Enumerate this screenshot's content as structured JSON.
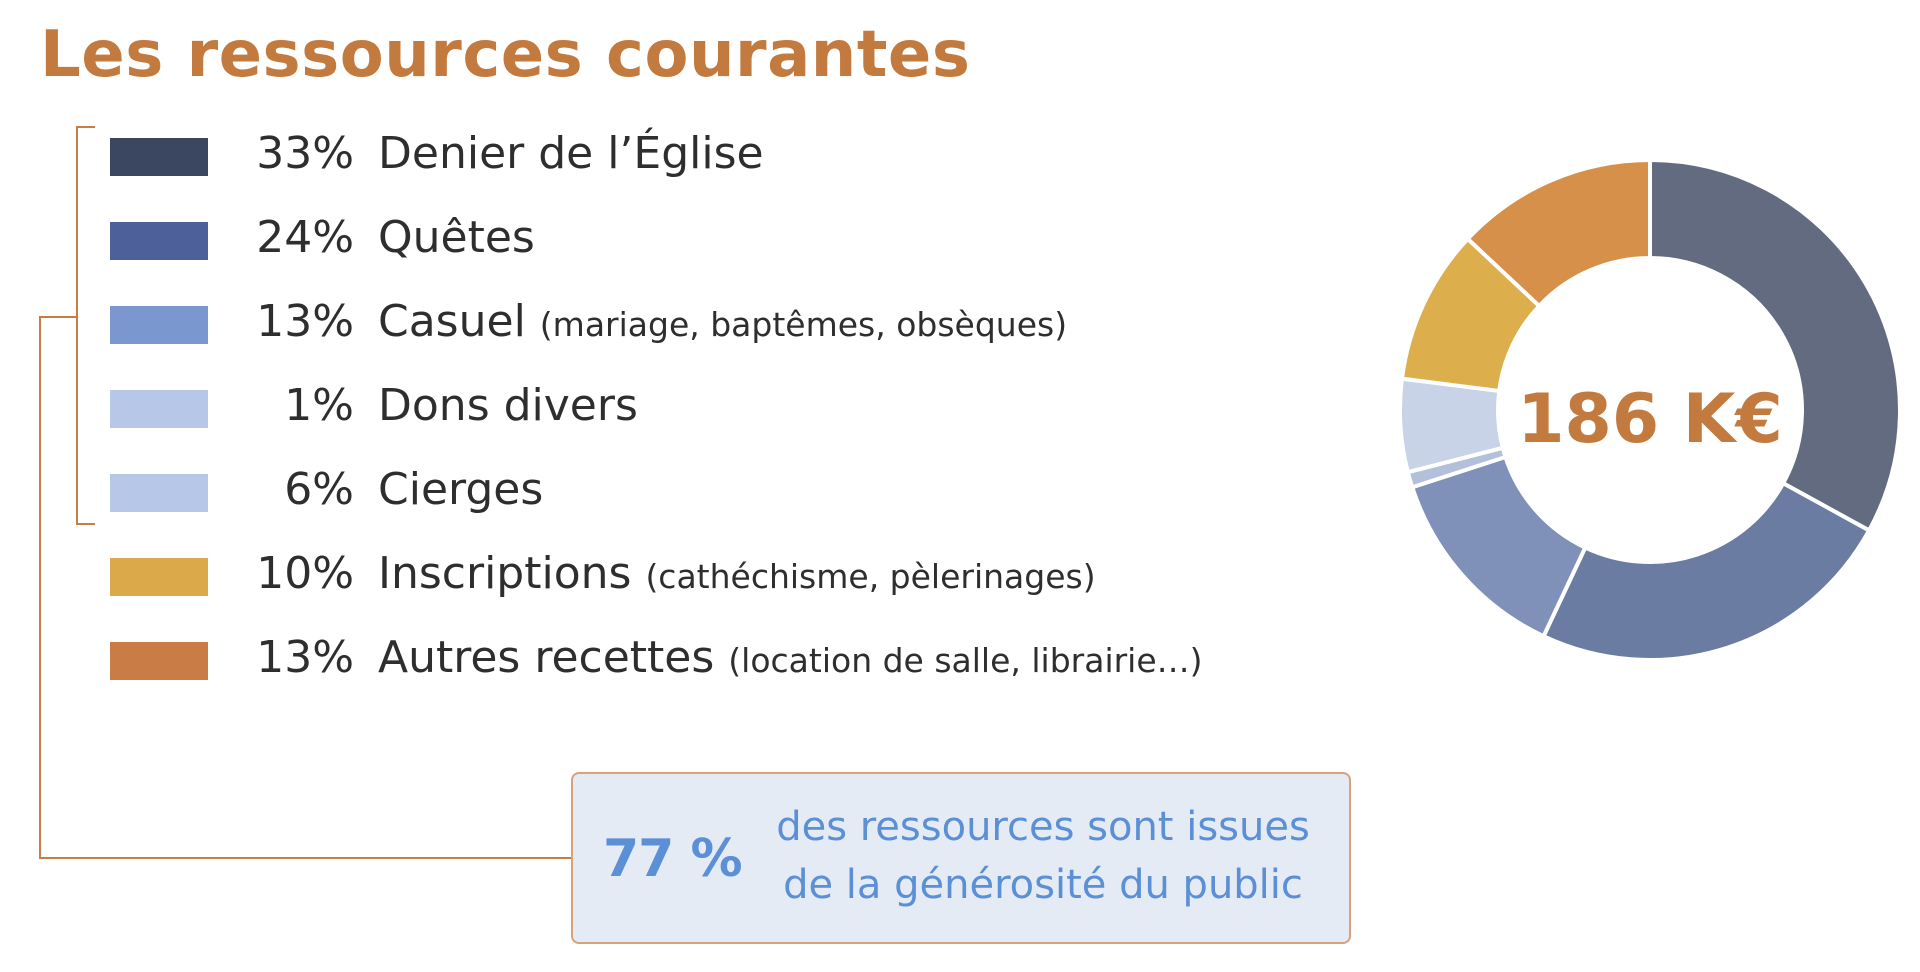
{
  "title": "Les ressources courantes",
  "chart_data": {
    "type": "pie",
    "total_label": "186 K€",
    "slices": [
      {
        "pct_label": "33%",
        "label": "Denier de l’Église",
        "detail": "",
        "value": 33,
        "legend_color": "#3b4660",
        "slice_color": "#636b80"
      },
      {
        "pct_label": "24%",
        "label": "Quêtes",
        "detail": "",
        "value": 24,
        "legend_color": "#4e609a",
        "slice_color": "#6a7ca2"
      },
      {
        "pct_label": "13%",
        "label": "Casuel",
        "detail": "(mariage, baptêmes, obsèques)",
        "value": 13,
        "legend_color": "#7b97d0",
        "slice_color": "#7f91b8"
      },
      {
        "pct_label": "1%",
        "label": "Dons divers",
        "detail": "",
        "value": 1,
        "legend_color": "#b7c7e8",
        "slice_color": "#b3c0dc"
      },
      {
        "pct_label": "6%",
        "label": "Cierges",
        "detail": "",
        "value": 6,
        "legend_color": "#b7c7e8",
        "slice_color": "#c8d3e8"
      },
      {
        "pct_label": "10%",
        "label": "Inscriptions",
        "detail": "(cathéchisme, pèlerinages)",
        "value": 10,
        "legend_color": "#dba84a",
        "slice_color": "#ddaf4c"
      },
      {
        "pct_label": "13%",
        "label": "Autres recettes",
        "detail": "(location de salle, librairie…)",
        "value": 13,
        "legend_color": "#c97c45",
        "slice_color": "#d69049"
      }
    ]
  },
  "callout": {
    "big": "77 %",
    "line1": "des ressources sont issues",
    "line2": "de la générosité du public"
  },
  "colors": {
    "accent": "#c27a3e",
    "callout_text": "#5b8fd6",
    "callout_bg": "#e4ebf4"
  }
}
